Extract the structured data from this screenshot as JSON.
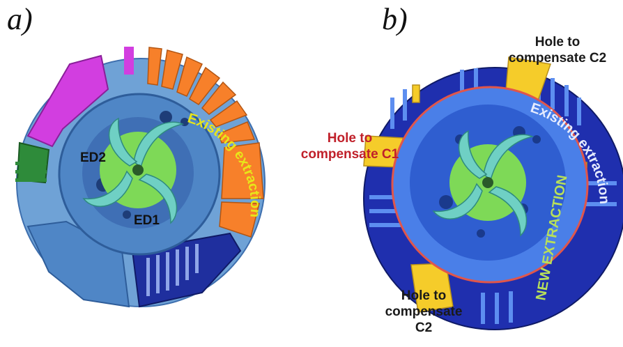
{
  "panels": {
    "a": {
      "label": "a)",
      "ed2": "ED2",
      "ed1": "ED1",
      "existing": "Existing extraction"
    },
    "b": {
      "label": "b)",
      "hole_top": {
        "line1": "Hole to",
        "line2": "compensate C2"
      },
      "hole_c1": {
        "line1": "Hole to",
        "line2": "compensate C1"
      },
      "hole_bottom": {
        "line1": "Hole to",
        "line2": "compensate",
        "line3": "C2"
      },
      "existing": "Existing extraction",
      "new_extraction": "NEW EXTRACTION"
    }
  },
  "colors": {
    "ring_light": "#6fa2d6",
    "ring_mid": "#4f86c6",
    "dark_blue": "#1f2f9e",
    "navy": "#132a8f",
    "orange": "#f7802a",
    "magenta": "#d23ee0",
    "green": "#2e8b3a",
    "lime": "#7ed957",
    "teal": "#6fd0c4",
    "yellow_label": "#e8e619",
    "yellow_slot": "#f5cc2a",
    "red_line": "#e0564b"
  }
}
